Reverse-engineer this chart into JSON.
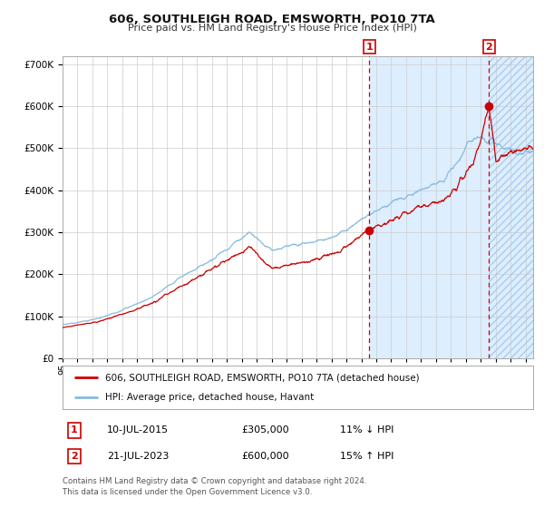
{
  "title": "606, SOUTHLEIGH ROAD, EMSWORTH, PO10 7TA",
  "subtitle": "Price paid vs. HM Land Registry's House Price Index (HPI)",
  "legend_line1": "606, SOUTHLEIGH ROAD, EMSWORTH, PO10 7TA (detached house)",
  "legend_line2": "HPI: Average price, detached house, Havant",
  "sale1_date": "10-JUL-2015",
  "sale1_price": "£305,000",
  "sale1_hpi": "11% ↓ HPI",
  "sale2_date": "21-JUL-2023",
  "sale2_price": "£600,000",
  "sale2_hpi": "15% ↑ HPI",
  "footnote1": "Contains HM Land Registry data © Crown copyright and database right 2024.",
  "footnote2": "This data is licensed under the Open Government Licence v3.0.",
  "red_color": "#cc0000",
  "blue_color": "#88bbdd",
  "background_color": "#ffffff",
  "shaded_region_color": "#ddeeff",
  "grid_color": "#cccccc",
  "ylim": [
    0,
    720000
  ],
  "yticks": [
    0,
    100000,
    200000,
    300000,
    400000,
    500000,
    600000,
    700000
  ],
  "xlim_start": 1995.0,
  "xlim_end": 2026.5,
  "sale1_x": 2015.53,
  "sale1_y": 305000,
  "sale2_x": 2023.55,
  "sale2_y": 600000,
  "hatch_region_start": 2023.55
}
